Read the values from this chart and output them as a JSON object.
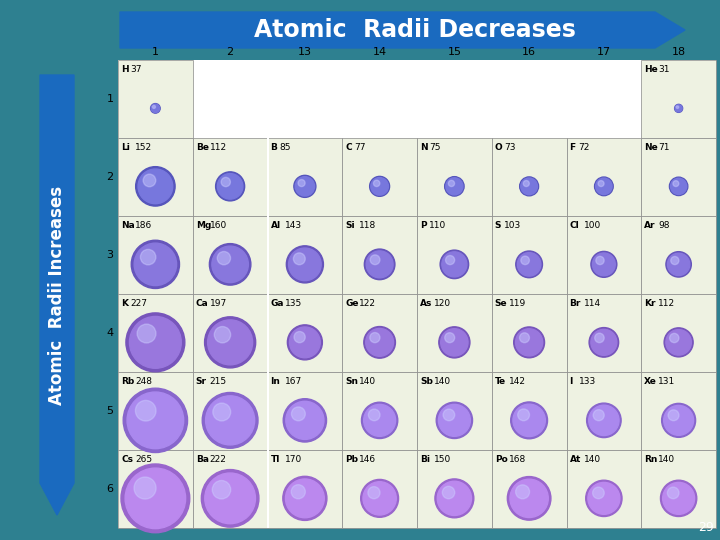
{
  "title": "Atomic  Radii Decreases",
  "left_label": "Atomic  Radii Increases",
  "bg_color": "#2e8090",
  "arrow_color": "#1a6abf",
  "page_num": "29",
  "elements": [
    {
      "sym": "H",
      "r": 37,
      "period": 1,
      "group": 1
    },
    {
      "sym": "He",
      "r": 31,
      "period": 1,
      "group": 18
    },
    {
      "sym": "Li",
      "r": 152,
      "period": 2,
      "group": 1
    },
    {
      "sym": "Be",
      "r": 112,
      "period": 2,
      "group": 2
    },
    {
      "sym": "B",
      "r": 85,
      "period": 2,
      "group": 13
    },
    {
      "sym": "C",
      "r": 77,
      "period": 2,
      "group": 14
    },
    {
      "sym": "N",
      "r": 75,
      "period": 2,
      "group": 15
    },
    {
      "sym": "O",
      "r": 73,
      "period": 2,
      "group": 16
    },
    {
      "sym": "F",
      "r": 72,
      "period": 2,
      "group": 17
    },
    {
      "sym": "Ne",
      "r": 71,
      "period": 2,
      "group": 18
    },
    {
      "sym": "Na",
      "r": 186,
      "period": 3,
      "group": 1
    },
    {
      "sym": "Mg",
      "r": 160,
      "period": 3,
      "group": 2
    },
    {
      "sym": "Al",
      "r": 143,
      "period": 3,
      "group": 13
    },
    {
      "sym": "Si",
      "r": 118,
      "period": 3,
      "group": 14
    },
    {
      "sym": "P",
      "r": 110,
      "period": 3,
      "group": 15
    },
    {
      "sym": "S",
      "r": 103,
      "period": 3,
      "group": 16
    },
    {
      "sym": "Cl",
      "r": 100,
      "period": 3,
      "group": 17
    },
    {
      "sym": "Ar",
      "r": 98,
      "period": 3,
      "group": 18
    },
    {
      "sym": "K",
      "r": 227,
      "period": 4,
      "group": 1
    },
    {
      "sym": "Ca",
      "r": 197,
      "period": 4,
      "group": 2
    },
    {
      "sym": "Ga",
      "r": 135,
      "period": 4,
      "group": 13
    },
    {
      "sym": "Ge",
      "r": 122,
      "period": 4,
      "group": 14
    },
    {
      "sym": "As",
      "r": 120,
      "period": 4,
      "group": 15
    },
    {
      "sym": "Se",
      "r": 119,
      "period": 4,
      "group": 16
    },
    {
      "sym": "Br",
      "r": 114,
      "period": 4,
      "group": 17
    },
    {
      "sym": "Kr",
      "r": 112,
      "period": 4,
      "group": 18
    },
    {
      "sym": "Rb",
      "r": 248,
      "period": 5,
      "group": 1
    },
    {
      "sym": "Sr",
      "r": 215,
      "period": 5,
      "group": 2
    },
    {
      "sym": "In",
      "r": 167,
      "period": 5,
      "group": 13
    },
    {
      "sym": "Sn",
      "r": 140,
      "period": 5,
      "group": 14
    },
    {
      "sym": "Sb",
      "r": 140,
      "period": 5,
      "group": 15
    },
    {
      "sym": "Te",
      "r": 142,
      "period": 5,
      "group": 16
    },
    {
      "sym": "I",
      "r": 133,
      "period": 5,
      "group": 17
    },
    {
      "sym": "Xe",
      "r": 131,
      "period": 5,
      "group": 18
    },
    {
      "sym": "Cs",
      "r": 265,
      "period": 6,
      "group": 1
    },
    {
      "sym": "Ba",
      "r": 222,
      "period": 6,
      "group": 2
    },
    {
      "sym": "Tl",
      "r": 170,
      "period": 6,
      "group": 13
    },
    {
      "sym": "Pb",
      "r": 146,
      "period": 6,
      "group": 14
    },
    {
      "sym": "Bi",
      "r": 150,
      "period": 6,
      "group": 15
    },
    {
      "sym": "Po",
      "r": 168,
      "period": 6,
      "group": 16
    },
    {
      "sym": "At",
      "r": 140,
      "period": 6,
      "group": 17
    },
    {
      "sym": "Rn",
      "r": 140,
      "period": 6,
      "group": 18
    }
  ]
}
